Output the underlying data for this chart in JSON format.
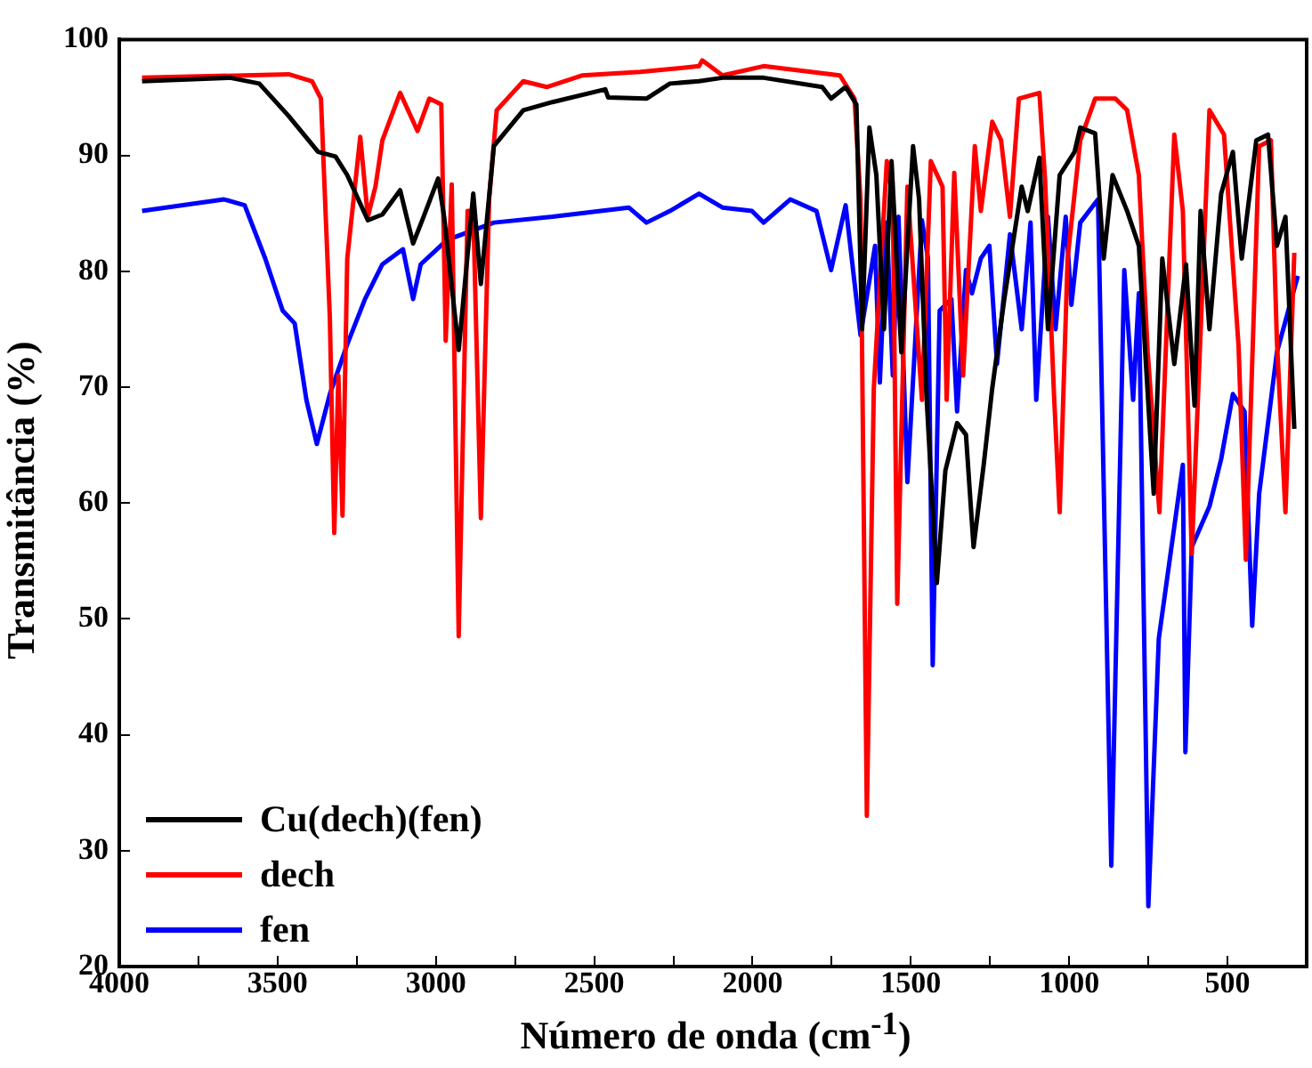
{
  "chart_data": {
    "type": "line",
    "xlabel": "Número de onda (cm$^{-1}$)",
    "ylabel": "Transmitância (%)",
    "xlim": [
      4000,
      250
    ],
    "xticks": [
      4000,
      {
        "value": 3750,
        "label": null
      },
      3500,
      {
        "value": 3250,
        "label": null
      },
      3000,
      {
        "value": 2750,
        "label": null
      },
      2500,
      {
        "value": 2250,
        "label": null
      },
      2000,
      {
        "value": 1750,
        "label": null
      },
      1500,
      {
        "value": 1250,
        "label": null
      },
      1000,
      {
        "value": 750,
        "label": null
      },
      500
    ],
    "ylim": [
      20,
      100
    ],
    "yticks": [
      20,
      30,
      40,
      50,
      60,
      70,
      80,
      90,
      100
    ],
    "grid": false,
    "legend": "bottom left",
    "marker": "none",
    "line_style": "solid",
    "series": [
      {
        "name": "Cu(dech)(fen)",
        "color": "#000000",
        "x": [
          3928,
          3650,
          3558,
          3465,
          3372,
          3317,
          3280,
          3215,
          3169,
          3113,
          3072,
          3039,
          2993,
          2974,
          2928,
          2882,
          2858,
          2817,
          2724,
          2632,
          2465,
          2456,
          2335,
          2261,
          2169,
          2095,
          1965,
          1780,
          1752,
          1706,
          1672,
          1654,
          1631,
          1609,
          1585,
          1561,
          1530,
          1493,
          1474,
          1450,
          1418,
          1391,
          1354,
          1326,
          1302,
          1270,
          1243,
          1205,
          1150,
          1131,
          1094,
          1067,
          1030,
          983,
          965,
          918,
          891,
          863,
          817,
          780,
          733,
          706,
          668,
          631,
          604,
          585,
          557,
          520,
          483,
          455,
          409,
          372,
          344,
          317,
          289
        ],
        "values": [
          96.4,
          96.7,
          96.2,
          93.4,
          90.3,
          89.9,
          88.3,
          84.4,
          84.9,
          87,
          82.4,
          84.7,
          88,
          84.7,
          73.2,
          86.7,
          78.9,
          90.8,
          93.9,
          94.6,
          95.7,
          95,
          94.9,
          96.2,
          96.4,
          96.7,
          96.7,
          95.9,
          94.9,
          95.9,
          94.4,
          75,
          92.4,
          88.3,
          75,
          89.5,
          73,
          90.8,
          86.2,
          68.9,
          53.1,
          62.8,
          66.9,
          65.9,
          56.2,
          63.3,
          69.9,
          77.6,
          87.3,
          85.2,
          89.8,
          75,
          88.3,
          90.3,
          92.4,
          91.9,
          81.1,
          88.3,
          85.2,
          82.2,
          60.8,
          81.1,
          72,
          80.6,
          68.4,
          85.2,
          75,
          86.7,
          90.3,
          81.1,
          91.3,
          91.8,
          82.2,
          84.7,
          66.4
        ]
      },
      {
        "name": "dech",
        "color": "#ff0000",
        "x": [
          3928,
          3465,
          3391,
          3363,
          3335,
          3321,
          3308,
          3295,
          3280,
          3239,
          3215,
          3191,
          3169,
          3113,
          3058,
          3021,
          2983,
          2969,
          2950,
          2928,
          2900,
          2882,
          2858,
          2832,
          2808,
          2724,
          2650,
          2539,
          2354,
          2169,
          2159,
          2095,
          1965,
          1724,
          1678,
          1659,
          1639,
          1617,
          1576,
          1557,
          1543,
          1511,
          1465,
          1437,
          1400,
          1387,
          1363,
          1335,
          1298,
          1279,
          1243,
          1215,
          1187,
          1159,
          1094,
          1076,
          1048,
          1030,
          1005,
          965,
          918,
          854,
          817,
          780,
          752,
          715,
          668,
          641,
          613,
          557,
          511,
          465,
          442,
          400,
          363,
          344,
          317,
          289
        ],
        "values": [
          96.7,
          97,
          96.4,
          94.9,
          76,
          57.4,
          71,
          58.9,
          81.1,
          91.6,
          84.7,
          87.3,
          91.3,
          95.4,
          92.1,
          94.9,
          94.4,
          74,
          87.5,
          48.5,
          85.2,
          85.2,
          58.7,
          86.2,
          93.9,
          96.4,
          95.9,
          96.9,
          97.2,
          97.7,
          98.2,
          96.9,
          97.7,
          96.9,
          94.9,
          86.2,
          33,
          69.9,
          89.5,
          86.2,
          51.3,
          87.3,
          68.9,
          89.5,
          87.3,
          68.9,
          88.5,
          71,
          90.8,
          85.2,
          92.9,
          91.3,
          84.7,
          94.9,
          95.4,
          87.8,
          69.4,
          59.2,
          81.1,
          91.3,
          94.9,
          94.9,
          93.9,
          88.3,
          73,
          59.2,
          91.8,
          85.2,
          55.6,
          93.9,
          91.8,
          73.5,
          55.1,
          90.8,
          91.3,
          74,
          59.2,
          81.6
        ]
      },
      {
        "name": "fen",
        "color": "#0000ff",
        "x": [
          3928,
          3669,
          3604,
          3539,
          3484,
          3446,
          3409,
          3376,
          3335,
          3280,
          3224,
          3169,
          3104,
          3072,
          3048,
          2965,
          2817,
          2632,
          2391,
          2335,
          2261,
          2169,
          2095,
          2002,
          1965,
          1881,
          1798,
          1752,
          1706,
          1659,
          1613,
          1598,
          1576,
          1557,
          1539,
          1511,
          1465,
          1446,
          1431,
          1409,
          1372,
          1354,
          1326,
          1307,
          1279,
          1252,
          1228,
          1187,
          1150,
          1122,
          1104,
          1067,
          1043,
          1011,
          993,
          965,
          909,
          867,
          826,
          798,
          780,
          750,
          717,
          641,
          633,
          613,
          557,
          520,
          483,
          446,
          422,
          400,
          344,
          278
        ],
        "values": [
          85.2,
          86.2,
          85.7,
          81.1,
          76.6,
          75.5,
          68.9,
          65.1,
          69.4,
          73.7,
          77.6,
          80.6,
          81.9,
          77.6,
          80.6,
          82.7,
          84.2,
          84.7,
          85.5,
          84.2,
          85.2,
          86.7,
          85.5,
          85.2,
          84.2,
          86.2,
          85.2,
          80.1,
          85.7,
          74.5,
          82.2,
          70.4,
          84.2,
          71,
          84.7,
          61.8,
          84.4,
          81.1,
          46,
          76.6,
          77.6,
          67.9,
          80.1,
          78.1,
          81.1,
          82.2,
          72,
          83.2,
          75,
          84.2,
          68.9,
          84.7,
          75,
          84.7,
          77.1,
          84.2,
          86.2,
          28.7,
          80.1,
          68.9,
          78.1,
          25.2,
          48.3,
          63.3,
          38.5,
          56.2,
          59.7,
          63.8,
          69.4,
          67.9,
          49.4,
          60.8,
          73,
          79.6
        ]
      }
    ]
  }
}
